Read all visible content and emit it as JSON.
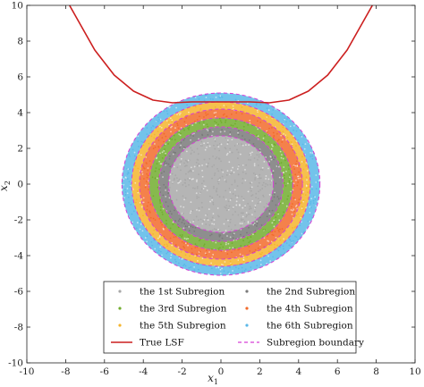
{
  "chart_data": {
    "type": "scatter",
    "title": "",
    "xlabel": "x",
    "xlabel_sub": "1",
    "ylabel": "x",
    "ylabel_sub": "2",
    "xlim": [
      -10,
      10
    ],
    "ylim": [
      -10,
      10
    ],
    "xticks": [
      -10,
      -8,
      -6,
      -4,
      -2,
      0,
      2,
      4,
      6,
      8,
      10
    ],
    "yticks": [
      -10,
      -8,
      -6,
      -4,
      -2,
      0,
      2,
      4,
      6,
      8,
      10
    ],
    "grid": false,
    "legend_position": "bottom-center",
    "series": [
      {
        "name": "the 1st Subregion",
        "kind": "annulus",
        "r_inner": 0.0,
        "r_outer": 2.7,
        "color": "#a8a8a8"
      },
      {
        "name": "the 2nd Subregion",
        "kind": "annulus",
        "r_inner": 2.7,
        "r_outer": 3.2,
        "color": "#7a7a7a"
      },
      {
        "name": "the 3rd Subregion",
        "kind": "annulus",
        "r_inner": 3.2,
        "r_outer": 3.7,
        "color": "#72ad2f"
      },
      {
        "name": "the 4th Subregion",
        "kind": "annulus",
        "r_inner": 3.7,
        "r_outer": 4.2,
        "color": "#f26b2c"
      },
      {
        "name": "the 5th Subregion",
        "kind": "annulus",
        "r_inner": 4.2,
        "r_outer": 4.6,
        "color": "#f5b52e"
      },
      {
        "name": "the 6th Subregion",
        "kind": "annulus",
        "r_inner": 4.6,
        "r_outer": 5.1,
        "color": "#5bb8e8"
      },
      {
        "name": "True LSF",
        "kind": "line",
        "color": "#cc1f1f",
        "x": [
          -7.8,
          -6.5,
          -5.5,
          -4.5,
          -3.5,
          -2.5,
          -1.5,
          0,
          1.5,
          2.5,
          3.5,
          4.5,
          5.5,
          6.5,
          7.8
        ],
        "y": [
          10.0,
          7.5,
          6.1,
          5.2,
          4.7,
          4.55,
          4.6,
          4.6,
          4.6,
          4.55,
          4.7,
          5.2,
          6.1,
          7.5,
          10.0
        ]
      },
      {
        "name": "Subregion boundary",
        "kind": "dashed-circles",
        "color": "#d63fd6",
        "radii": [
          2.7,
          3.2,
          3.7,
          4.2,
          4.6,
          5.1
        ]
      }
    ],
    "legend": [
      {
        "label": "the 1st Subregion",
        "color": "#a8a8a8",
        "marker": "dot"
      },
      {
        "label": "the 2nd Subregion",
        "color": "#7a7a7a",
        "marker": "dot"
      },
      {
        "label": "the 3rd Subregion",
        "color": "#72ad2f",
        "marker": "dot"
      },
      {
        "label": "the 4th Subregion",
        "color": "#f26b2c",
        "marker": "dot"
      },
      {
        "label": "the 5th Subregion",
        "color": "#f5b52e",
        "marker": "dot"
      },
      {
        "label": "the 6th Subregion",
        "color": "#5bb8e8",
        "marker": "dot"
      },
      {
        "label": "True LSF",
        "color": "#cc1f1f",
        "marker": "line"
      },
      {
        "label": "Subregion boundary",
        "color": "#d63fd6",
        "marker": "dashed"
      }
    ]
  }
}
